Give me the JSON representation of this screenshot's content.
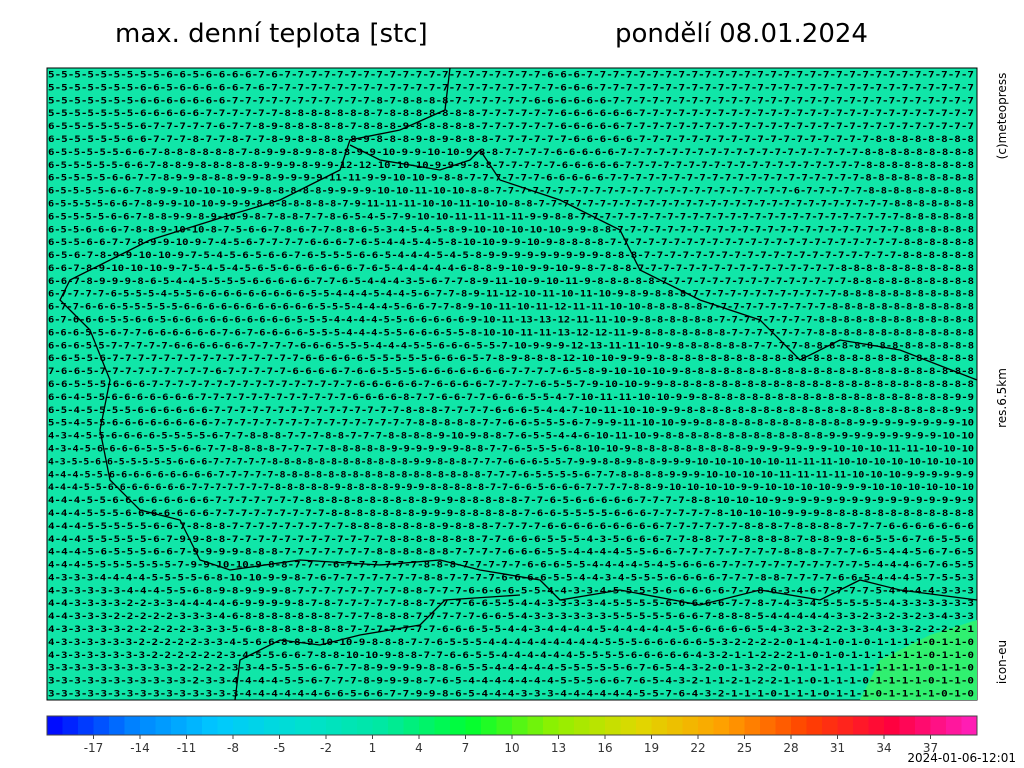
{
  "header": {
    "title": "max. denní teplota [stc]",
    "date": "pondělí 08.01.2024"
  },
  "side_labels": {
    "copyright": "(c)meteopress",
    "resolution": "res.6.5km",
    "model": "icon-eu"
  },
  "grid": {
    "rows": [
      "5-5-5-5-5-5-5-5-5-6-6-5-6-6-6-6-7-6-7-7-7-7-7-7-7-7-7-7-7-7-7-7-7-7-7-7-7-7-6-6-6-7-7-7-7-7-7-7-7-7-7-7-7-7-7-7-7-7-7-7-7-7-7-7-7-7-7-7-7-7-7",
      "5-5-5-5-5-5-5-6-6-5-6-6-6-6-6-7-6-7-7-7-7-7-7-7-7-7-7-7-7-7-7-7-7-7-7-7-7-7-7-6-6-6-7-7-7-7-7-7-7-7-7-7-7-7-7-7-7-7-7-7-7-7-7-7-7-7-7-7-7-7-7",
      "5-5-5-5-5-5-5-6-6-6-6-6-6-6-7-7-7-7-7-7-7-7-7-7-7-8-7-8-8-8-8-7-7-7-7-7-7-6-6-6-6-6-6-7-7-7-7-7-7-7-7-7-7-7-7-7-7-7-7-7-7-7-7-7-7-7-7-7-7-7-7",
      "5-5-5-5-5-5-5-6-6-6-6-6-7-7-7-7-7-7-8-8-8-8-8-8-8-7-8-8-8-8-8-8-8-7-7-7-7-7-7-6-6-6-6-6-6-7-7-7-7-7-7-7-7-7-7-7-7-7-7-7-7-7-7-7-7-7-7-7-7-7-7",
      "6-5-5-5-5-5-5-6-7-7-7-7-7-6-7-7-8-9-8-8-8-8-8-7-8-8-8-9-8-8-8-8-8-7-7-7-7-7-7-6-6-6-6-6-7-7-7-7-7-7-7-7-7-7-7-7-7-7-7-7-7-7-7-7-7-7-7-7-7-7-7",
      "6-5-5-5-5-5-6-6-7-7-7-8-7-7-8-7-7-8-9-8-8-8-8-8-9-8-8-8-9-8-9-8-8-8-7-7-7-7-7-7-6-6-6-6-6-7-7-7-7-7-7-7-7-7-7-7-7-7-7-7-7-7-7-8-8-8-8-8-8-8-8",
      "6-5-5-5-5-5-6-6-7-8-8-8-8-8-8-7-8-9-9-8-9-8-8-8-9-9-10-9-9-10-10-9-8-8-7-7-7-7-6-6-6-6-6-7-7-7-7-7-7-7-7-7-7-7-7-7-7-7-7-7-7-7-8-8-8-8-8-8-8-8-8",
      "6-5-5-5-5-5-6-6-7-8-8-9-8-8-8-8-8-9-9-9-8-9-9-12-12-10-10-10-9-9-9-8-8-7-7-7-7-7-6-6-6-6-6-7-7-7-7-7-7-7-7-7-7-7-7-7-7-7-7-7-7-7-8-8-8-8-8-8-8-8-8",
      "6-5-5-5-5-6-6-7-7-8-9-9-8-8-8-9-9-8-9-9-9-9-11-11-9-9-10-10-9-8-8-7-7-7-7-7-7-6-6-6-6-6-7-7-7-7-7-7-7-7-7-7-7-7-7-7-7-7-7-7-7-7-8-8-8-8-8-8-8-8-8",
      "6-5-5-5-5-6-6-7-8-9-9-10-10-10-9-9-8-8-8-8-8-9-9-9-9-10-10-11-10-10-8-8-7-7-7-7-7-7-7-7-7-7-7-7-7-7-7-7-7-7-7-7-7-7-7-7-6-7-7-7-7-7-8-8-8-8-8-8-8-8-8",
      "6-5-5-5-5-6-6-7-8-9-9-10-10-9-9-9-8-8-8-8-8-8-8-7-9-11-11-11-10-10-11-10-10-8-8-7-7-7-7-7-7-7-7-7-7-7-7-7-7-7-7-7-7-7-7-7-7-7-7-7-7-7-7-7-8-8-8-8-8-8-8",
      "6-5-5-5-5-6-6-7-8-8-9-9-8-9-10-9-8-7-8-8-7-7-8-6-5-4-5-7-9-10-10-11-11-11-11-9-9-8-8-7-7-7-7-7-7-7-7-7-7-7-7-7-7-7-7-7-7-7-7-7-7-7-7-7-7-8-8-8-8-8-8",
      "6-5-5-6-6-6-7-8-8-9-10-10-8-7-5-6-6-7-8-6-7-7-8-8-6-5-3-4-5-4-5-8-9-10-10-10-10-10-9-9-8-8-7-7-7-7-7-7-7-7-7-7-7-7-7-7-7-7-7-7-7-7-7-7-7-8-8-8-8-8-8",
      "6-5-5-6-6-7-7-8-9-9-10-9-7-4-5-6-7-7-7-7-6-6-6-7-6-5-4-4-5-4-5-8-10-10-9-9-10-9-8-8-8-8-7-7-7-7-7-7-7-7-7-7-7-7-7-7-7-7-7-7-7-7-7-7-7-8-8-8-8-8-8",
      "6-5-6-7-8-9-9-10-10-9-7-5-4-5-6-5-6-6-7-6-5-5-5-6-6-5-4-4-4-5-4-5-8-9-9-9-9-9-9-9-9-9-8-8-8-7-7-7-7-7-7-7-7-7-7-7-7-7-7-7-7-7-7-7-7-8-8-8-8-8-8",
      "6-6-7-8-9-10-10-10-9-7-5-4-5-4-5-6-5-6-6-6-6-6-6-7-6-5-4-4-4-4-4-6-8-8-9-10-9-9-10-9-8-7-8-8-7-7-7-7-7-7-7-7-7-7-7-7-7-7-7-7-8-8-8-8-8-8-8-8-8-8-8",
      "6-6-7-8-9-9-9-8-6-5-4-4-5-5-5-5-6-6-6-6-6-7-7-6-5-4-4-4-3-5-6-7-7-8-9-11-10-9-10-11-9-8-8-8-8-8-7-7-7-7-7-7-7-7-7-7-7-7-7-7-7-8-8-8-8-8-8-8-8-8-8",
      "6-7-7-7-7-6-5-5-5-4-5-5-6-6-6-6-6-6-6-6-6-5-5-4-4-4-5-4-4-5-6-7-7-8-9-11-12-10-11-10-11-10-9-8-9-8-8-8-7-7-7-7-7-7-7-7-7-7-7-7-8-8-8-8-8-8-8-8-8-8-8",
      "6-7-7-6-6-6-5-5-5-5-5-6-6-6-6-6-6-6-6-6-6-6-5-5-5-4-4-4-5-6-6-7-7-8-9-10-11-10-11-12-11-11-10-10-8-8-8-8-8-7-7-7-7-7-7-7-7-7-7-8-8-8-8-8-8-8-8-8-8-8-8",
      "6-7-6-6-6-5-5-6-6-5-6-6-6-6-6-6-6-6-6-6-5-5-5-4-4-4-4-5-5-6-6-6-6-6-9-10-11-13-13-12-11-11-10-9-8-8-8-8-8-8-7-7-7-7-7-7-7-7-8-8-8-8-8-8-8-8-8-8-8-8-8",
      "6-6-6-5-5-6-7-7-6-6-6-6-6-6-7-6-7-6-6-6-6-5-5-5-4-4-4-5-5-6-6-6-5-5-8-10-10-11-11-13-12-12-11-9-8-8-8-8-8-8-8-7-7-7-7-7-7-7-8-8-8-8-8-8-8-8-8-8-8-8-8",
      "6-6-6-5-5-7-7-7-7-7-6-6-6-6-6-6-7-7-7-7-6-6-6-5-5-5-4-4-4-5-5-6-6-6-5-5-7-10-9-9-9-12-13-11-11-10-9-8-8-8-8-8-8-7-7-7-7-8-8-8-8-8-8-8-8-8-8-8-8-8-8",
      "6-6-5-5-6-7-7-7-7-7-7-7-7-7-7-7-7-7-7-7-6-6-6-6-6-5-5-5-5-5-6-6-6-5-7-8-9-8-8-8-12-10-10-9-9-9-8-8-8-8-8-8-8-8-8-8-8-8-8-8-8-8-8-8-8-8-8-8-8-8-8",
      "7-6-6-5-7-7-7-7-7-7-7-7-7-6-7-7-7-7-7-6-6-6-6-7-6-6-5-5-5-6-6-6-6-6-6-6-7-7-7-7-6-5-8-9-10-10-10-9-8-8-8-8-8-8-8-8-8-8-8-8-8-8-8-8-8-8-8-8-8-8-8",
      "6-6-5-5-5-6-6-6-7-7-7-7-7-7-7-7-7-7-7-7-7-7-7-7-6-6-6-6-6-7-6-6-6-6-7-7-7-7-6-5-5-7-9-10-10-9-9-8-8-8-8-8-8-8-8-8-8-8-8-8-8-8-8-8-8-8-8-8-8-8-8",
      "6-6-4-5-5-6-6-6-6-6-6-6-7-7-7-7-7-7-7-7-7-7-7-7-6-6-6-6-8-7-7-6-6-7-7-6-6-6-5-5-4-7-10-11-11-10-10-9-9-8-8-8-8-8-8-8-8-8-8-8-8-8-8-8-8-8-8-8-8-9-9",
      "6-5-4-5-5-5-5-6-6-6-6-6-6-7-7-7-7-7-7-7-7-7-7-7-7-7-7-7-8-8-8-7-7-7-7-6-6-6-5-4-4-7-10-11-10-10-9-9-8-8-8-8-8-8-8-8-8-8-8-8-8-8-8-8-8-8-8-8-8-9-9",
      "5-5-4-5-5-6-6-6-6-6-6-6-6-7-7-7-7-7-7-7-7-7-7-7-7-7-7-7-7-8-8-8-8-8-7-7-6-6-5-5-5-6-7-9-9-11-10-10-9-9-8-8-8-8-8-8-8-8-8-8-8-8-9-9-9-9-9-9-9-9-10",
      "4-3-4-5-5-6-6-6-6-5-5-5-5-6-7-7-8-8-8-7-7-7-8-8-7-7-7-8-8-8-8-9-10-9-8-8-7-6-5-5-4-4-6-10-11-10-9-8-8-8-8-8-8-8-8-8-8-8-8-8-9-9-9-9-9-9-9-9-9-10-10",
      "4-3-4-5-6-6-6-6-5-5-5-6-6-7-7-8-8-8-8-7-7-7-7-8-8-8-8-8-9-9-9-9-9-9-8-8-7-7-6-5-5-5-6-8-10-10-9-8-8-8-8-8-8-8-8-8-9-9-9-9-9-9-9-10-10-10-11-11-10-10-10",
      "4-3-5-5-6-6-5-5-5-5-5-6-6-6-7-7-7-7-7-8-8-8-8-8-8-8-8-8-8-8-8-9-9-8-8-8-7-7-7-6-6-6-5-5-7-9-9-8-8-9-8-8-9-9-9-10-10-10-10-10-11-11-11-10-10-10-10-10-10-10-10",
      "4-4-4-5-5-6-6-6-6-6-6-6-6-6-7-7-7-7-7-8-8-8-8-8-8-8-8-8-8-8-8-8-8-8-8-8-7-7-7-6-5-5-5-5-6-7-7-8-8-8-8-9-9-9-10-10-10-10-11-11-11-11-10-10-10-9-9-9-9-9-9",
      "4-4-4-5-5-6-6-6-6-6-6-6-7-7-7-7-7-7-7-8-8-8-8-8-9-8-8-8-8-9-9-9-8-8-8-8-8-7-7-6-6-5-6-6-6-7-7-7-7-8-8-9-10-10-10-10-9-9-10-10-10-10-9-9-9-10-10-10-10-10-10",
      "4-4-4-5-5-6-6-6-6-6-6-6-6-7-7-7-7-7-7-7-8-8-8-8-8-8-8-8-8-8-9-9-8-8-8-8-8-7-7-6-5-6-6-6-6-6-7-7-7-7-8-8-10-10-10-9-9-9-9-9-9-9-9-9-9-9-9-9-9-9-9",
      "4-4-4-5-5-5-6-6-6-6-6-6-6-7-7-7-7-7-7-7-7-7-8-8-8-8-8-8-8-9-9-9-8-8-8-8-8-7-6-6-5-5-5-5-6-6-6-7-7-7-7-7-8-10-10-10-9-9-9-8-8-8-8-8-8-8-8-8-8-8-8",
      "4-4-4-5-5-5-5-5-6-6-7-8-8-8-7-7-7-7-7-7-7-7-7-8-8-8-8-8-8-8-9-8-8-8-7-7-7-7-6-6-6-6-6-6-6-6-6-7-7-7-7-7-7-8-8-8-7-8-8-8-8-7-7-7-6-6-6-6-6-6-6",
      "4-4-4-5-5-5-5-5-6-7-9-9-8-8-7-7-7-7-7-7-7-7-7-7-7-7-8-8-8-8-8-8-8-7-7-6-6-6-5-5-5-4-3-5-6-6-6-7-7-8-8-7-7-8-8-8-8-7-8-8-9-8-6-5-5-6-7-6-5-5-6",
      "4-4-4-5-6-5-5-5-6-6-7-9-9-9-9-8-8-8-7-7-7-7-7-7-7-8-8-8-8-8-8-7-7-7-7-6-6-6-5-5-4-4-4-4-5-5-6-6-7-7-7-7-7-7-7-7-8-8-8-7-7-7-6-5-4-4-5-6-7-6-5",
      "4-4-4-5-5-5-5-5-5-5-7-9-9-10-10-9-8-8-7-7-7-6-7-7-7-7-7-7-8-8-8-7-7-7-7-7-6-6-6-5-5-4-4-4-4-5-4-5-6-6-6-7-7-7-7-7-7-7-7-7-7-7-5-4-4-4-6-7-6-5-5",
      "4-3-3-3-4-4-4-4-5-5-5-5-6-8-10-10-9-9-8-7-6-7-7-7-7-7-7-7-8-8-7-7-7-7-6-6-6-6-5-5-4-4-3-4-5-5-5-6-6-6-6-7-7-7-8-8-7-7-7-7-6-6-5-4-4-4-5-7-5-5-3",
      "4-3-3-3-3-3-4-4-4-5-5-6-8-9-8-9-9-9-8-7-7-7-7-7-7-7-7-8-8-7-7-7-6-6-6-6-5-5-4-4-3-3-4-5-5-5-5-6-6-6-6-6-7-7-8-6-3-4-6-7-7-7-7-5-4-4-4-4-3-3-3",
      "4-4-3-3-3-3-2-2-3-3-4-4-4-4-6-9-9-9-9-8-7-8-7-7-7-7-7-8-8-7-7-7-6-6-5-5-4-4-3-3-3-3-4-5-5-5-5-6-6-6-6-6-7-7-8-7-4-3-4-5-5-5-5-5-4-3-3-3-3-3-3",
      "4-4-3-3-3-2-2-2-2-2-3-3-3-4-6-8-8-8-8-8-8-8-7-7-7-8-8-8-7-7-7-7-7-6-6-5-4-3-3-3-3-3-3-5-5-5-5-5-6-6-7-8-8-8-5-4-4-4-4-4-3-3-2-3-2-3-2-3-4-3-3",
      "4-3-3-3-3-3-2-2-2-2-2-3-3-3-5-6-8-8-8-8-8-8-8-7-7-7-7-7-7-7-6-6-6-5-5-4-4-3-4-4-4-4-5-4-4-4-4-4-5-6-6-6-6-6-5-4-3-2-3-2-2-3-3-4-3-3-2-2-2-2-1",
      "4-3-3-3-3-3-3-2-2-2-2-2-3-3-4-5-6-6-8-8-9-10-10-9-8-8-8-7-7-6-5-5-5-4-4-4-4-4-4-4-4-4-5-5-5-6-6-6-6-6-5-3-2-2-2-2-0-1-4-1-0-1-0-1-1-1-1-0-1-1-0",
      "4-3-3-3-3-3-3-3-2-2-2-2-2-2-3-4-5-5-6-6-7-8-8-10-10-9-8-8-7-7-6-6-5-5-4-4-4-4-4-4-5-5-5-5-6-6-6-6-6-4-3-2-1-1-2-2-2-1-0-1-0-1-1-1-1-1-1-0-1-1-0",
      "3-3-3-3-3-3-3-3-3-3-2-2-2-2-3-3-4-5-5-5-6-6-7-7-8-9-9-9-9-8-8-6-5-5-4-4-4-4-4-5-5-5-5-5-6-7-6-5-4-3-2-0-1-3-2-2-0-1-1-1-1-1-1-1-1-1-1-0-1-1-0",
      "3-3-3-3-3-3-3-3-3-3-3-2-3-3-4-4-4-4-5-5-6-7-7-7-8-9-9-9-8-7-6-5-4-4-4-4-4-4-4-5-5-5-6-6-7-6-5-4-3-2-1-1-2-1-2-2-1-1-0-1-1-1-0-1-1-1-1-0-1-1-0",
      "3-3-3-3-3-3-3-3-3-3-3-3-3-3-3-4-4-4-4-4-4-6-6-5-6-6-7-7-9-9-8-6-5-4-4-4-3-3-3-4-4-4-4-4-4-5-5-7-6-4-3-2-1-1-1-0-1-1-1-0-1-1-1-0-1-1-1-1-0-1-0"
    ]
  },
  "colorbar": {
    "lim": [
      -20,
      40
    ],
    "ticks": [
      -17,
      -14,
      -11,
      -8,
      -5,
      -2,
      1,
      4,
      7,
      10,
      13,
      16,
      19,
      22,
      25,
      28,
      31,
      34,
      37
    ],
    "colors": [
      "#0000ff",
      "#0080ff",
      "#00c8ff",
      "#00e0d0",
      "#00e8a0",
      "#00ff30",
      "#90f000",
      "#e0d800",
      "#ffa000",
      "#ff4000",
      "#ff0040",
      "#ff20c0"
    ],
    "timestamp": "2024-01-06-12:01"
  }
}
